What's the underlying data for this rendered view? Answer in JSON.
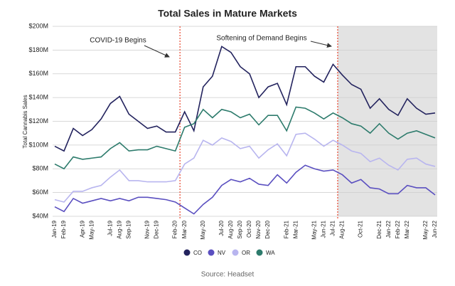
{
  "chart_data": {
    "type": "line",
    "title": "Total Sales in Mature Markets",
    "y_label": "Total Cannabis Sales",
    "source": "Source: Headset",
    "annotations": [
      "COVID-19 Begins",
      "Softening of Demand Begins"
    ],
    "categories": [
      "Jan-19",
      "Feb-19",
      null,
      "Apr-19",
      "May-19",
      null,
      "Jul-19",
      "Aug-19",
      "Sep-19",
      null,
      "Nov-19",
      "Dec-19",
      null,
      "Feb-20",
      "Mar-20",
      null,
      "May-20",
      null,
      "Jul-20",
      "Aug-20",
      "Sep-20",
      "Oct-20",
      "Nov-20",
      "Dec-20",
      null,
      "Feb-21",
      "Mar-21",
      null,
      "May-21",
      "Jun-21",
      "Jul-21",
      "Aug-21",
      null,
      "Oct-21",
      null,
      "Dec-21",
      "Jan-22",
      "Feb-22",
      "Mar-22",
      null,
      "May-22",
      "Jun-22"
    ],
    "series": [
      {
        "name": "CO",
        "color": "#23235e",
        "values": [
          99,
          95,
          114,
          108,
          113,
          122,
          135,
          141,
          126,
          120,
          114,
          116,
          111,
          111,
          128,
          112,
          149,
          158,
          183,
          178,
          166,
          160,
          140,
          149,
          152,
          134,
          166,
          166,
          158,
          153,
          168,
          159,
          151,
          147,
          131,
          139,
          130,
          125,
          139,
          131,
          126,
          127
        ]
      },
      {
        "name": "NV",
        "color": "#5a4fc0",
        "values": [
          48,
          44,
          55,
          51,
          53,
          55,
          53,
          55,
          53,
          56,
          56,
          55,
          54,
          52,
          47,
          42,
          50,
          56,
          66,
          71,
          69,
          72,
          67,
          66,
          75,
          68,
          77,
          83,
          80,
          78,
          79,
          75,
          68,
          71,
          64,
          63,
          59,
          59,
          66,
          64,
          64,
          58
        ]
      },
      {
        "name": "OR",
        "color": "#b8b5ef",
        "values": [
          54,
          52,
          61,
          61,
          64,
          66,
          73,
          79,
          70,
          70,
          69,
          69,
          69,
          70,
          84,
          89,
          104,
          100,
          106,
          103,
          97,
          99,
          89,
          96,
          101,
          91,
          109,
          110,
          105,
          99,
          104,
          100,
          95,
          93,
          86,
          89,
          83,
          79,
          88,
          89,
          84,
          82
        ]
      },
      {
        "name": "WA",
        "color": "#2d7b6c",
        "values": [
          84,
          80,
          90,
          88,
          89,
          90,
          97,
          102,
          95,
          96,
          96,
          99,
          97,
          95,
          115,
          118,
          130,
          123,
          130,
          128,
          123,
          126,
          117,
          125,
          125,
          112,
          132,
          131,
          127,
          122,
          127,
          123,
          118,
          116,
          110,
          118,
          110,
          105,
          110,
          112,
          109,
          106
        ]
      }
    ],
    "ylim": [
      40,
      200
    ],
    "yticks": [
      {
        "value": 40,
        "label": "$40M"
      },
      {
        "value": 60,
        "label": "$60M"
      },
      {
        "value": 80,
        "label": "$80M"
      },
      {
        "value": 100,
        "label": "$100M"
      },
      {
        "value": 120,
        "label": "$120M"
      },
      {
        "value": 140,
        "label": "$140M"
      },
      {
        "value": 160,
        "label": "$160M"
      },
      {
        "value": 180,
        "label": "$180M"
      },
      {
        "value": 200,
        "label": "$200M"
      }
    ],
    "grid": true
  }
}
